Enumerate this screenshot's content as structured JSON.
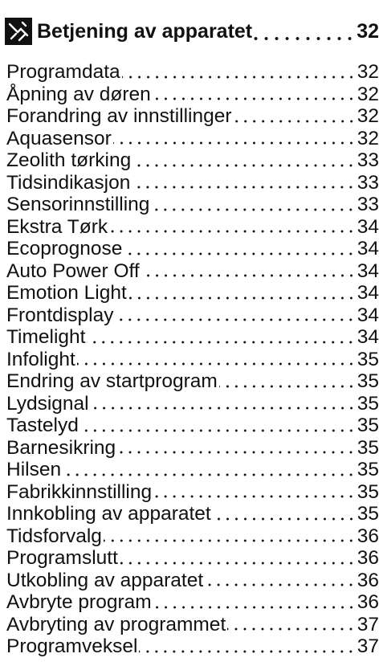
{
  "header": {
    "title": "Betjening av apparatet",
    "page": "32"
  },
  "entries": [
    {
      "label": "Programdata",
      "page": "32"
    },
    {
      "label": "Åpning av døren",
      "page": "32"
    },
    {
      "label": "Forandring av innstillinger",
      "page": "32"
    },
    {
      "label": "Aquasensor",
      "page": "32"
    },
    {
      "label": "Zeolith tørking",
      "page": "33"
    },
    {
      "label": "Tidsindikasjon",
      "page": "33"
    },
    {
      "label": "Sensorinnstilling",
      "page": "33"
    },
    {
      "label": "Ekstra Tørk",
      "page": "34"
    },
    {
      "label": "Ecoprognose",
      "page": "34"
    },
    {
      "label": "Auto Power Off",
      "page": "34"
    },
    {
      "label": "Emotion Light",
      "page": "34"
    },
    {
      "label": "Frontdisplay",
      "page": "34"
    },
    {
      "label": "Timelight",
      "page": "34"
    },
    {
      "label": "Infolight",
      "page": "35"
    },
    {
      "label": "Endring av startprogram",
      "page": "35"
    },
    {
      "label": "Lydsignal",
      "page": "35"
    },
    {
      "label": "Tastelyd",
      "page": "35"
    },
    {
      "label": "Barnesikring",
      "page": "35"
    },
    {
      "label": "Hilsen",
      "page": "35"
    },
    {
      "label": "Fabrikkinnstilling",
      "page": "35"
    },
    {
      "label": "Innkobling av apparatet",
      "page": "35"
    },
    {
      "label": "Tidsforvalg",
      "page": "36"
    },
    {
      "label": "Programslutt",
      "page": "36"
    },
    {
      "label": "Utkobling av apparatet",
      "page": "36"
    },
    {
      "label": "Avbryte program",
      "page": "36"
    },
    {
      "label": "Avbryting av programmet",
      "page": "37"
    },
    {
      "label": "Programveksel",
      "page": "37"
    }
  ]
}
